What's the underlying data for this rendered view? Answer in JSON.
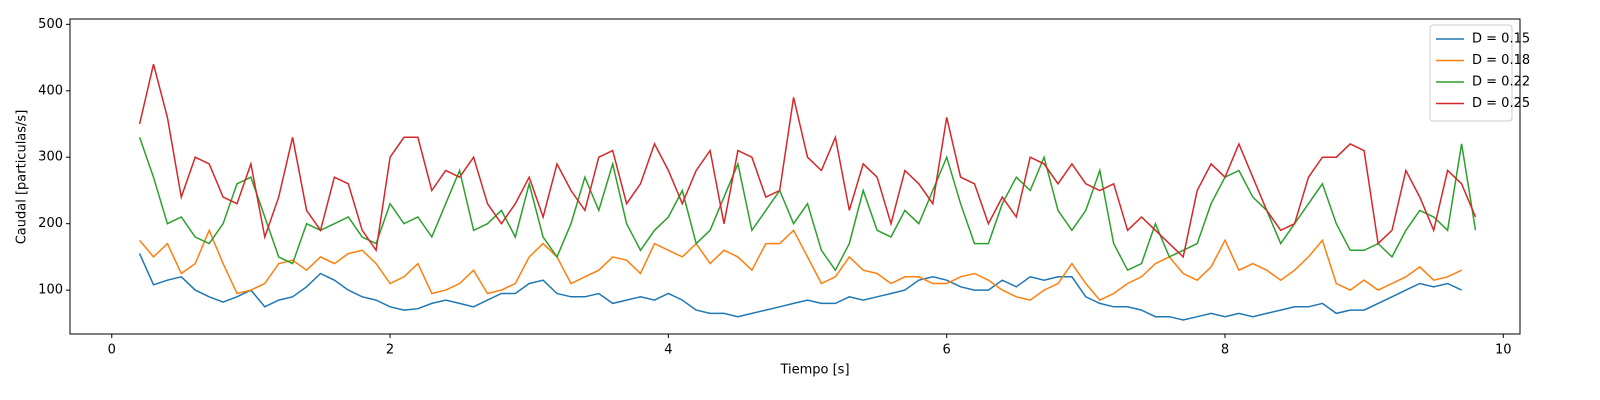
{
  "chart_data": {
    "type": "line",
    "xlabel": "Tiempo [s]",
    "ylabel": "Caudal [particulas/s]",
    "x": [
      0.2,
      0.3,
      0.4,
      0.5,
      0.6,
      0.7,
      0.8,
      0.9,
      1.0,
      1.1,
      1.2,
      1.3,
      1.4,
      1.5,
      1.6,
      1.7,
      1.8,
      1.9,
      2.0,
      2.1,
      2.2,
      2.3,
      2.4,
      2.5,
      2.6,
      2.7,
      2.8,
      2.9,
      3.0,
      3.1,
      3.2,
      3.3,
      3.4,
      3.5,
      3.6,
      3.7,
      3.8,
      3.9,
      4.0,
      4.1,
      4.2,
      4.3,
      4.4,
      4.5,
      4.6,
      4.7,
      4.8,
      4.9,
      5.0,
      5.1,
      5.2,
      5.3,
      5.4,
      5.5,
      5.6,
      5.7,
      5.8,
      5.9,
      6.0,
      6.1,
      6.2,
      6.3,
      6.4,
      6.5,
      6.6,
      6.7,
      6.8,
      6.9,
      7.0,
      7.1,
      7.2,
      7.3,
      7.4,
      7.5,
      7.6,
      7.7,
      7.8,
      7.9,
      8.0,
      8.1,
      8.2,
      8.3,
      8.4,
      8.5,
      8.6,
      8.7,
      8.8,
      8.9,
      9.0,
      9.1,
      9.2,
      9.3,
      9.4,
      9.5,
      9.6,
      9.7,
      9.8
    ],
    "series": [
      {
        "name": "D = 0.15",
        "color": "#1f77b4",
        "values": [
          155,
          108,
          115,
          120,
          100,
          90,
          82,
          90,
          100,
          75,
          85,
          90,
          105,
          125,
          115,
          100,
          90,
          85,
          75,
          70,
          72,
          80,
          85,
          80,
          75,
          85,
          95,
          95,
          110,
          115,
          95,
          90,
          90,
          95,
          80,
          85,
          90,
          85,
          95,
          85,
          70,
          65,
          65,
          60,
          65,
          70,
          75,
          80,
          85,
          80,
          80,
          90,
          85,
          90,
          95,
          100,
          115,
          120,
          115,
          105,
          100,
          100,
          115,
          105,
          120,
          115,
          120,
          120,
          90,
          80,
          75,
          75,
          70,
          60,
          60,
          55,
          60,
          65,
          60,
          65,
          60,
          65,
          70,
          75,
          75,
          80,
          65,
          70,
          70,
          80,
          90,
          100,
          110,
          105,
          110,
          100,
          null
        ]
      },
      {
        "name": "D = 0.18",
        "color": "#ff7f0e",
        "values": [
          175,
          150,
          170,
          125,
          140,
          190,
          140,
          95,
          100,
          110,
          140,
          145,
          130,
          150,
          140,
          155,
          160,
          140,
          110,
          120,
          140,
          95,
          100,
          110,
          130,
          95,
          100,
          110,
          150,
          170,
          150,
          110,
          120,
          130,
          150,
          145,
          125,
          170,
          160,
          150,
          170,
          140,
          160,
          150,
          130,
          170,
          170,
          190,
          150,
          110,
          120,
          150,
          130,
          125,
          110,
          120,
          120,
          110,
          110,
          120,
          125,
          115,
          100,
          90,
          85,
          100,
          110,
          140,
          110,
          85,
          95,
          110,
          120,
          140,
          150,
          125,
          115,
          135,
          175,
          130,
          140,
          130,
          115,
          130,
          150,
          175,
          110,
          100,
          115,
          100,
          110,
          120,
          135,
          115,
          120,
          130,
          null
        ]
      },
      {
        "name": "D = 0.22",
        "color": "#2ca02c",
        "values": [
          330,
          270,
          200,
          210,
          180,
          170,
          200,
          260,
          270,
          210,
          150,
          140,
          200,
          190,
          200,
          210,
          180,
          170,
          230,
          200,
          210,
          180,
          230,
          280,
          190,
          200,
          220,
          180,
          260,
          180,
          150,
          200,
          270,
          220,
          290,
          200,
          160,
          190,
          210,
          250,
          170,
          190,
          240,
          290,
          190,
          220,
          250,
          200,
          230,
          160,
          130,
          170,
          250,
          190,
          180,
          220,
          200,
          250,
          300,
          230,
          170,
          170,
          230,
          270,
          250,
          300,
          220,
          190,
          220,
          280,
          170,
          130,
          140,
          200,
          150,
          160,
          170,
          230,
          270,
          280,
          240,
          220,
          170,
          200,
          230,
          260,
          200,
          160,
          160,
          170,
          150,
          190,
          220,
          210,
          190,
          320,
          190
        ]
      },
      {
        "name": "D = 0.25",
        "color": "#d62728",
        "values": [
          350,
          440,
          360,
          240,
          300,
          290,
          240,
          230,
          290,
          180,
          240,
          330,
          220,
          190,
          270,
          260,
          190,
          160,
          300,
          330,
          330,
          250,
          280,
          270,
          300,
          230,
          200,
          230,
          270,
          210,
          290,
          250,
          220,
          300,
          310,
          230,
          260,
          320,
          280,
          230,
          280,
          310,
          200,
          310,
          300,
          240,
          250,
          390,
          300,
          280,
          330,
          220,
          290,
          270,
          200,
          280,
          260,
          230,
          360,
          270,
          260,
          200,
          240,
          210,
          300,
          290,
          260,
          290,
          260,
          250,
          260,
          190,
          210,
          190,
          170,
          150,
          250,
          290,
          270,
          320,
          270,
          220,
          190,
          200,
          270,
          300,
          300,
          320,
          310,
          170,
          190,
          280,
          240,
          190,
          280,
          260,
          210
        ]
      }
    ],
    "xlim": [
      -0.3,
      10.12
    ],
    "xticks": [
      0,
      2,
      4,
      6,
      8,
      10
    ],
    "ylim": [
      34,
      508
    ],
    "yticks": [
      100,
      200,
      300,
      400,
      500
    ],
    "legend": "upper right"
  }
}
